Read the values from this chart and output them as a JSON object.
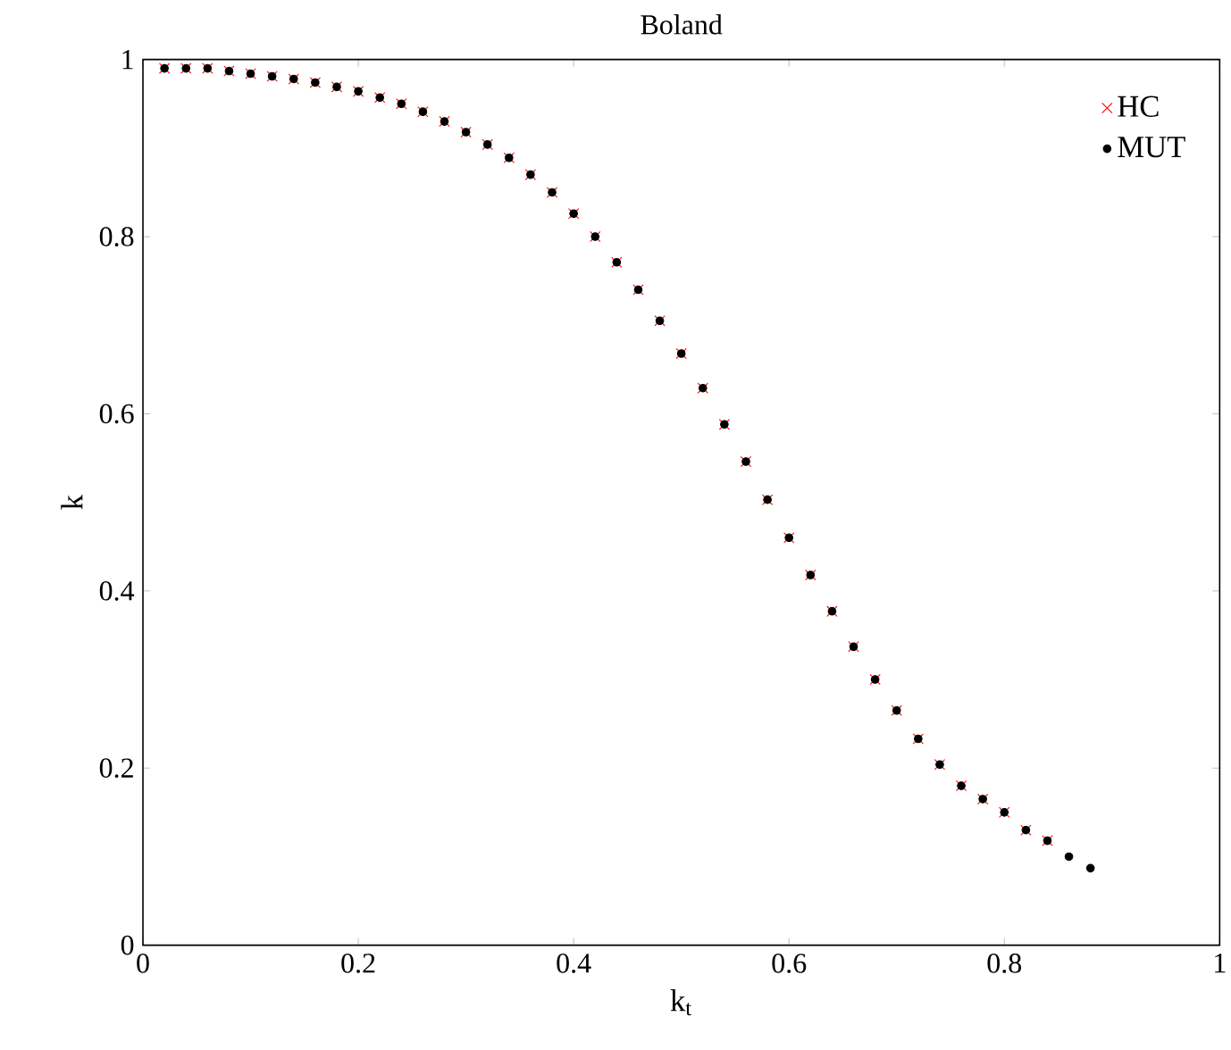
{
  "chart_data": {
    "type": "scatter",
    "title": "Boland",
    "xlabel": "k$_{t}$",
    "ylabel": "k",
    "x": [
      0.02,
      0.04,
      0.06,
      0.08,
      0.1,
      0.12,
      0.14,
      0.16,
      0.18,
      0.2,
      0.22,
      0.24,
      0.26,
      0.28,
      0.3,
      0.32,
      0.34,
      0.36,
      0.38,
      0.4,
      0.42,
      0.44,
      0.46,
      0.48,
      0.5,
      0.52,
      0.54,
      0.56,
      0.58,
      0.6,
      0.62,
      0.64,
      0.66,
      0.68,
      0.7,
      0.72,
      0.74,
      0.76,
      0.78,
      0.8,
      0.82,
      0.84,
      0.86,
      0.88
    ],
    "series": [
      {
        "name": "HC",
        "color": "#ff0000",
        "marker": "cross",
        "values": [
          0.99,
          0.99,
          0.99,
          0.987,
          0.984,
          0.981,
          0.978,
          0.974,
          0.969,
          0.964,
          0.957,
          0.95,
          0.941,
          0.93,
          0.918,
          0.904,
          0.889,
          0.87,
          0.85,
          0.826,
          0.8,
          0.771,
          0.74,
          0.705,
          0.668,
          0.629,
          0.588,
          0.546,
          0.503,
          0.46,
          0.418,
          0.377,
          0.337,
          0.3,
          0.265,
          0.233,
          0.204,
          0.18,
          0.165,
          0.15,
          0.13,
          0.118,
          null,
          null
        ]
      },
      {
        "name": "MUT",
        "color": "#000000",
        "marker": "circle",
        "values": [
          0.99,
          0.99,
          0.99,
          0.987,
          0.984,
          0.981,
          0.978,
          0.974,
          0.969,
          0.964,
          0.957,
          0.95,
          0.941,
          0.93,
          0.918,
          0.904,
          0.889,
          0.87,
          0.85,
          0.826,
          0.8,
          0.771,
          0.74,
          0.705,
          0.668,
          0.629,
          0.588,
          0.546,
          0.503,
          0.46,
          0.418,
          0.377,
          0.337,
          0.3,
          0.265,
          0.233,
          0.204,
          0.18,
          0.165,
          0.15,
          0.13,
          0.118,
          0.1,
          0.087
        ]
      }
    ],
    "xlim": [
      0,
      1
    ],
    "ylim": [
      0,
      1
    ],
    "xticks": [
      0,
      0.2,
      0.4,
      0.6,
      0.8,
      1
    ],
    "yticks": [
      0,
      0.2,
      0.4,
      0.6,
      0.8,
      1
    ],
    "legend": "top right"
  }
}
